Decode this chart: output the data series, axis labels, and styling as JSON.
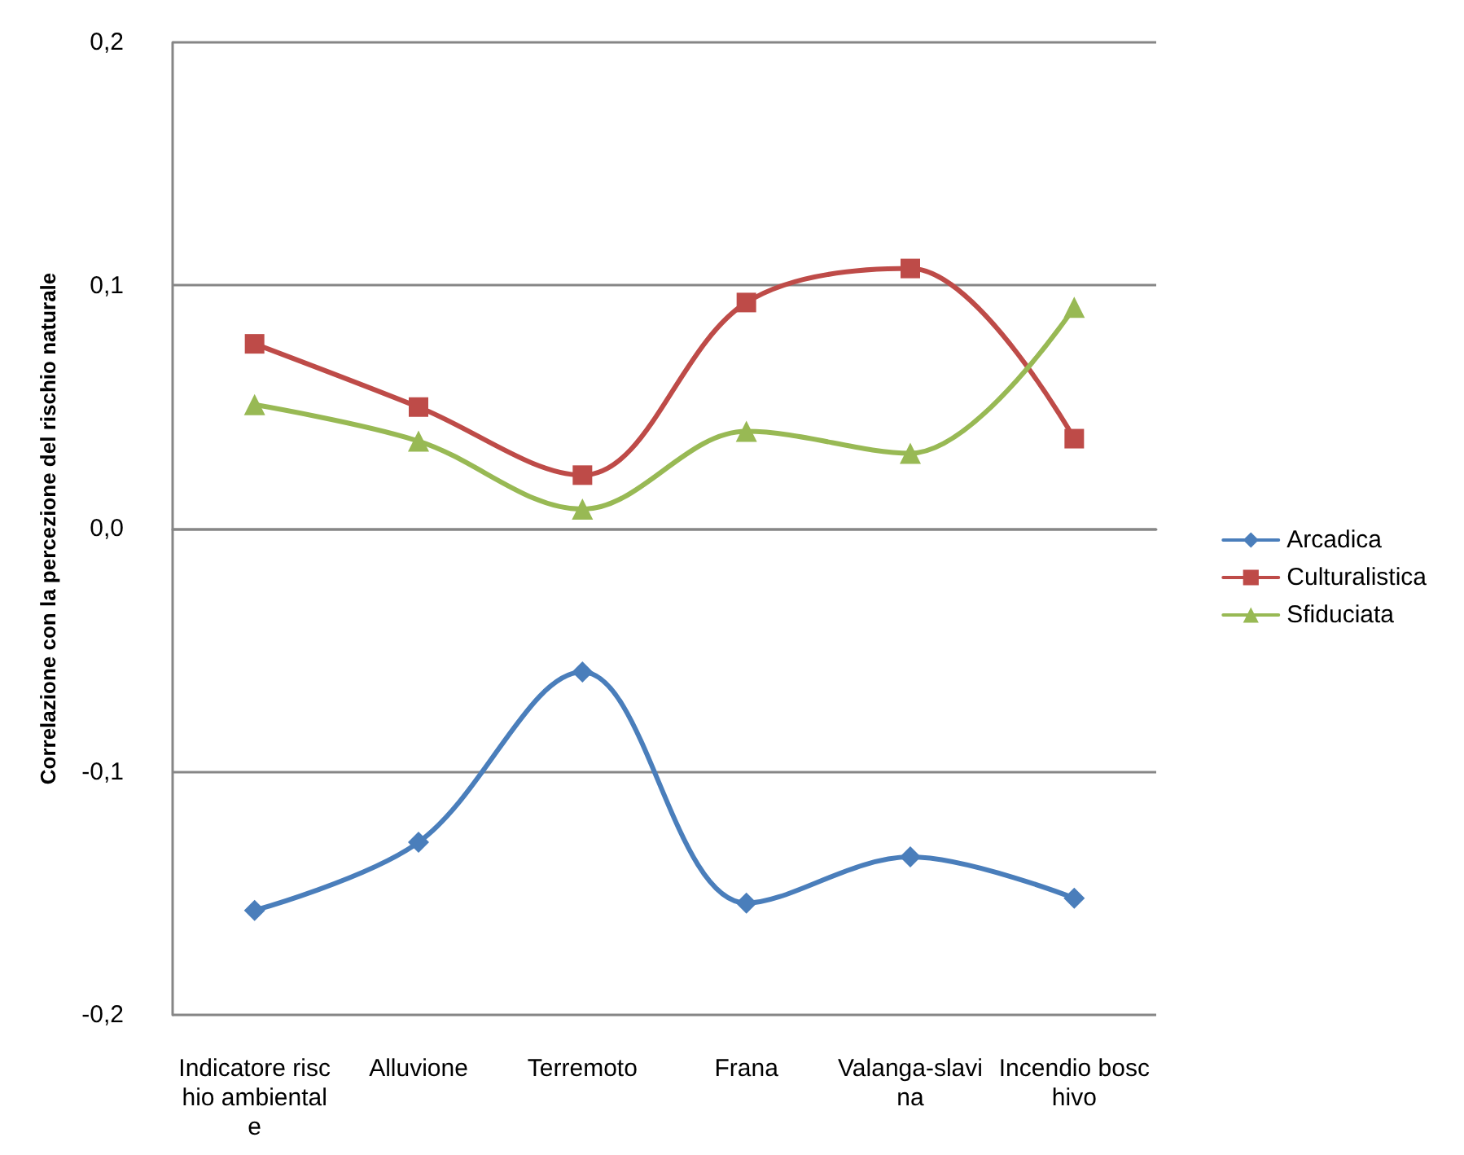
{
  "chart_data": {
    "type": "line",
    "ylabel": "Correlazione con la percezione del rischio naturale",
    "categories": [
      "Indicatore rischio ambientale",
      "Alluvione",
      "Terremoto",
      "Frana",
      "Valanga-slavina",
      "Incendio boschivo"
    ],
    "series": [
      {
        "name": "Arcadica",
        "color": "#4a7ebb",
        "marker": "diamond",
        "values": [
          -0.157,
          -0.129,
          -0.059,
          -0.154,
          -0.135,
          -0.152
        ]
      },
      {
        "name": "Culturalistica",
        "color": "#be4b48",
        "marker": "square",
        "values": [
          0.076,
          0.05,
          0.022,
          0.093,
          0.107,
          0.037
        ]
      },
      {
        "name": "Sfiduciata",
        "color": "#98b954",
        "marker": "triangle",
        "values": [
          0.051,
          0.036,
          0.008,
          0.04,
          0.031,
          0.091
        ]
      }
    ],
    "ylim": [
      -0.2,
      0.2
    ],
    "yticks": [
      {
        "value": -0.2,
        "label": "-0,2"
      },
      {
        "value": -0.1,
        "label": "-0,1"
      },
      {
        "value": 0,
        "label": "0,0"
      },
      {
        "value": 0.1,
        "label": "0,1"
      },
      {
        "value": 0.2,
        "label": "0,2"
      }
    ],
    "grid": "y",
    "legend": "right",
    "line_style": "solid"
  }
}
